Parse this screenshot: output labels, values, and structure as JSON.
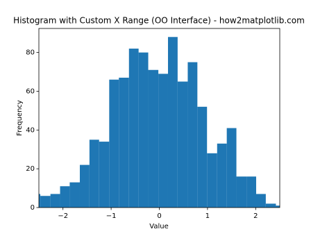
{
  "chart_data": {
    "type": "histogram",
    "title": "Histogram with Custom X Range (OO Interface) - how2matplotlib.com",
    "x_label": "Value",
    "y_label": "Frequency",
    "color": "#1f77b4",
    "bins": [
      -2.67,
      -2.47,
      -2.26,
      -2.06,
      -1.86,
      -1.65,
      -1.45,
      -1.25,
      -1.04,
      -0.84,
      -0.63,
      -0.43,
      -0.23,
      -0.02,
      0.18,
      0.38,
      0.59,
      0.79,
      0.99,
      1.2,
      1.4,
      1.6,
      1.81,
      2.01,
      2.21,
      2.42,
      2.62
    ],
    "counts": [
      7,
      6,
      7,
      11,
      13,
      22,
      35,
      34,
      66,
      67,
      82,
      80,
      71,
      69,
      88,
      65,
      75,
      52,
      28,
      33,
      41,
      16,
      16,
      7,
      2,
      1
    ],
    "xlim": [
      -2.5,
      2.5
    ],
    "xticks": [
      {
        "value": -2,
        "label": "−2"
      },
      {
        "value": -1,
        "label": "−1"
      },
      0,
      1,
      2
    ],
    "ylim": [
      0,
      92.4
    ],
    "yticks": [
      0,
      20,
      40,
      60,
      80
    ]
  }
}
